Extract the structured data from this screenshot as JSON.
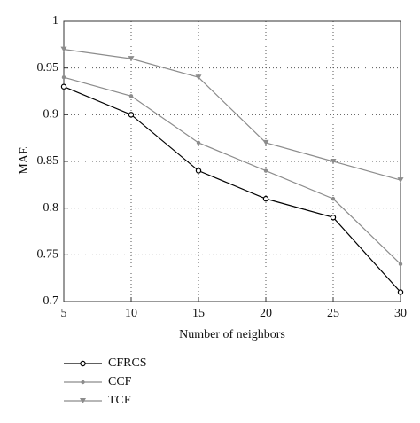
{
  "chart_data": {
    "type": "line",
    "x_label": "Number of neighbors",
    "y_label": "MAE",
    "x": [
      5,
      10,
      15,
      20,
      25,
      30
    ],
    "series": [
      {
        "name": "CFRCS",
        "color": "#000000",
        "marker": "circle",
        "values": [
          0.93,
          0.9,
          0.84,
          0.81,
          0.79,
          0.71
        ]
      },
      {
        "name": "CCF",
        "color": "#8c8c8c",
        "marker": "dot",
        "values": [
          0.94,
          0.92,
          0.87,
          0.84,
          0.81,
          0.74
        ]
      },
      {
        "name": "TCF",
        "color": "#8c8c8c",
        "marker": "triangle-down",
        "values": [
          0.97,
          0.96,
          0.94,
          0.87,
          0.85,
          0.83
        ]
      }
    ],
    "xlim": [
      5,
      30
    ],
    "xticks": [
      5,
      10,
      15,
      20,
      25,
      30
    ],
    "ylim": [
      0.7,
      1
    ],
    "yticks": [
      0.7,
      0.75,
      0.8,
      0.85,
      0.9,
      0.95,
      1
    ],
    "grid": true
  }
}
